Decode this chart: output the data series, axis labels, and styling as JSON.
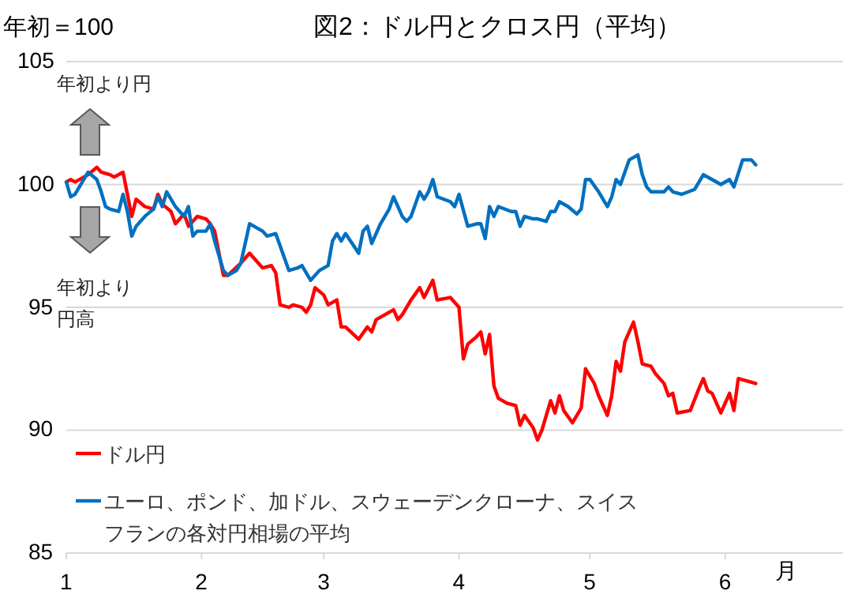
{
  "chart_data": {
    "type": "line",
    "title": "図2：ドル円とクロス円（平均）",
    "ylabel": "年初＝100",
    "xlabel": "月",
    "annotations": [
      "年初より円",
      "年初より円高"
    ],
    "xlim": [
      "--01-01",
      "--06-28"
    ],
    "xticks": [
      {
        "value": "--01-01",
        "label": "1"
      },
      {
        "value": "--02-01",
        "label": "2"
      },
      {
        "value": "--03-01",
        "label": "3"
      },
      {
        "value": "--04-01",
        "label": "4"
      },
      {
        "value": "--05-01",
        "label": "5"
      },
      {
        "value": "--06-01",
        "label": "6"
      }
    ],
    "ylim": [
      85,
      105
    ],
    "yticks": [
      85,
      90,
      95,
      100,
      105
    ],
    "grid": "y",
    "legend": "bottom left",
    "series": [
      {
        "name": "ドル円",
        "color": "#ff0000",
        "x": [
          "--01-01",
          "--01-02",
          "--01-03",
          "--01-06",
          "--01-08",
          "--01-09",
          "--01-11",
          "--01-12",
          "--01-14",
          "--01-15",
          "--01-16",
          "--01-17",
          "--01-19",
          "--01-21",
          "--01-22",
          "--01-23",
          "--01-25",
          "--01-26",
          "--01-28",
          "--01-29",
          "--01-31",
          "--02-02",
          "--02-03",
          "--02-04",
          "--02-06",
          "--02-07",
          "--02-10",
          "--02-12",
          "--02-13",
          "--02-14",
          "--02-15",
          "--02-17",
          "--02-18",
          "--02-19",
          "--02-21",
          "--02-22",
          "--02-24",
          "--02-25",
          "--02-26",
          "--02-27",
          "--03-01",
          "--03-02",
          "--03-04",
          "--03-05",
          "--03-06",
          "--03-09",
          "--03-11",
          "--03-12",
          "--03-13",
          "--03-15",
          "--03-17",
          "--03-18",
          "--03-19",
          "--03-21",
          "--03-23",
          "--03-24",
          "--03-26",
          "--03-27",
          "--03-30",
          "--04-01",
          "--04-02",
          "--04-03",
          "--04-05",
          "--04-06",
          "--04-07",
          "--04-08",
          "--04-09",
          "--04-10",
          "--04-12",
          "--04-14",
          "--04-15",
          "--04-16",
          "--04-18",
          "--04-19",
          "--04-20",
          "--04-22",
          "--04-23",
          "--04-24",
          "--04-25",
          "--04-27",
          "--04-28",
          "--04-29",
          "--04-30",
          "--05-02",
          "--05-03",
          "--05-05",
          "--05-06",
          "--05-07",
          "--05-08",
          "--05-09",
          "--05-11",
          "--05-12",
          "--05-13",
          "--05-15",
          "--05-16",
          "--05-18",
          "--05-19",
          "--05-20",
          "--05-21",
          "--05-24",
          "--05-26",
          "--05-27",
          "--05-28",
          "--05-29",
          "--05-31",
          "--06-02",
          "--06-03",
          "--06-04",
          "--06-08"
        ],
        "values": [
          100.1,
          100.2,
          100.1,
          100.4,
          100.7,
          100.5,
          100.4,
          100.3,
          100.5,
          99.6,
          98.7,
          99.4,
          99.1,
          99.0,
          99.6,
          99.2,
          98.9,
          98.4,
          98.8,
          98.3,
          98.7,
          98.6,
          98.4,
          98.1,
          96.3,
          96.3,
          96.8,
          97.2,
          97.0,
          96.8,
          96.6,
          96.7,
          96.4,
          95.1,
          95.0,
          95.1,
          95.0,
          94.8,
          95.1,
          95.8,
          95.5,
          95.1,
          95.3,
          94.2,
          94.2,
          93.7,
          94.2,
          94.0,
          94.5,
          94.7,
          94.9,
          94.5,
          94.7,
          95.3,
          95.8,
          95.4,
          96.1,
          95.3,
          95.4,
          95.0,
          92.9,
          93.5,
          93.8,
          94.0,
          93.1,
          93.9,
          91.8,
          91.3,
          91.1,
          91.0,
          90.2,
          90.6,
          90.1,
          89.6,
          90.0,
          91.2,
          90.7,
          91.4,
          90.8,
          90.3,
          90.6,
          90.9,
          92.5,
          91.9,
          91.4,
          90.6,
          91.4,
          92.8,
          92.4,
          93.6,
          94.4,
          93.6,
          92.7,
          92.6,
          92.3,
          91.9,
          91.4,
          91.5,
          90.7,
          90.8,
          91.7,
          92.1,
          91.6,
          91.5,
          90.7,
          91.5,
          90.8,
          92.1,
          91.9
        ]
      },
      {
        "name": "ユーロ、ポンド、加ドル、スウェーデンクローナ、スイスフランの各対円相場の平均",
        "color": "#0070c0",
        "x": [
          "--01-01",
          "--01-02",
          "--01-03",
          "--01-06",
          "--01-08",
          "--01-09",
          "--01-10",
          "--01-11",
          "--01-13",
          "--01-14",
          "--01-15",
          "--01-16",
          "--01-17",
          "--01-19",
          "--01-21",
          "--01-22",
          "--01-23",
          "--01-24",
          "--01-25",
          "--01-26",
          "--01-28",
          "--01-29",
          "--01-30",
          "--01-31",
          "--02-02",
          "--02-03",
          "--02-04",
          "--02-06",
          "--02-07",
          "--02-09",
          "--02-10",
          "--02-12",
          "--02-13",
          "--02-15",
          "--02-16",
          "--02-18",
          "--02-21",
          "--02-23",
          "--02-24",
          "--02-26",
          "--02-28",
          "--03-02",
          "--03-03",
          "--03-04",
          "--03-05",
          "--03-06",
          "--03-09",
          "--03-10",
          "--03-11",
          "--03-12",
          "--03-14",
          "--03-16",
          "--03-17",
          "--03-19",
          "--03-20",
          "--03-21",
          "--03-23",
          "--03-24",
          "--03-25",
          "--03-26",
          "--03-27",
          "--03-30",
          "--03-31",
          "--04-01",
          "--04-03",
          "--04-05",
          "--04-06",
          "--04-07",
          "--04-08",
          "--04-09",
          "--04-10",
          "--04-13",
          "--04-14",
          "--04-15",
          "--04-16",
          "--04-18",
          "--04-19",
          "--04-21",
          "--04-22",
          "--04-23",
          "--04-24",
          "--04-26",
          "--04-28",
          "--04-29",
          "--04-30",
          "--05-01",
          "--05-03",
          "--05-05",
          "--05-06",
          "--05-07",
          "--05-08",
          "--05-09",
          "--05-10",
          "--05-12",
          "--05-13",
          "--05-14",
          "--05-15",
          "--05-18",
          "--05-19",
          "--05-20",
          "--05-22",
          "--05-25",
          "--05-26",
          "--05-27",
          "--05-29",
          "--05-31",
          "--06-02",
          "--06-03",
          "--06-05",
          "--06-07",
          "--06-08"
        ],
        "values": [
          100.1,
          99.5,
          99.6,
          100.5,
          100.2,
          99.7,
          99.1,
          99.0,
          98.9,
          99.6,
          98.9,
          97.9,
          98.3,
          98.7,
          99.0,
          99.5,
          99.1,
          99.7,
          99.4,
          99.1,
          98.7,
          99.1,
          97.9,
          98.1,
          98.1,
          98.4,
          97.7,
          96.5,
          96.3,
          96.5,
          96.8,
          98.4,
          98.3,
          98.1,
          97.9,
          98.0,
          96.5,
          96.6,
          96.7,
          96.1,
          96.5,
          96.7,
          97.7,
          98.0,
          97.7,
          98.0,
          97.2,
          98.1,
          98.3,
          97.6,
          98.4,
          99.0,
          99.5,
          98.7,
          98.5,
          98.7,
          99.7,
          99.4,
          99.7,
          100.2,
          99.5,
          99.3,
          99.1,
          99.6,
          98.3,
          98.4,
          98.4,
          97.8,
          99.1,
          98.7,
          99.1,
          98.9,
          98.9,
          98.3,
          98.7,
          98.6,
          98.6,
          98.5,
          98.9,
          98.9,
          99.3,
          99.1,
          98.8,
          99.0,
          100.2,
          100.2,
          99.7,
          99.1,
          99.5,
          100.2,
          100.0,
          100.5,
          101.0,
          101.2,
          100.4,
          99.9,
          99.7,
          99.7,
          99.9,
          99.7,
          99.6,
          99.8,
          100.1,
          100.4,
          100.2,
          100.0,
          100.2,
          99.9,
          101.0,
          101.0,
          100.8
        ]
      }
    ]
  }
}
